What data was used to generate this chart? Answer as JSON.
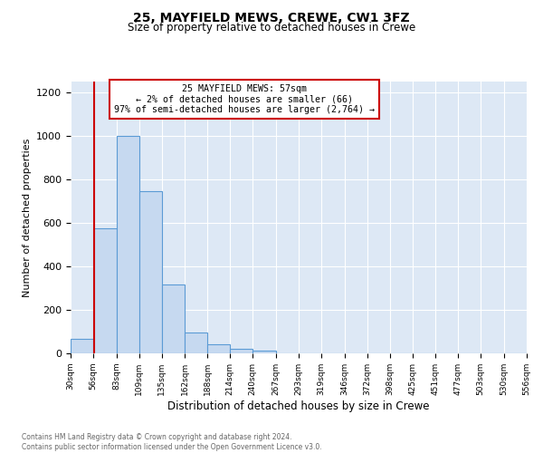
{
  "title1": "25, MAYFIELD MEWS, CREWE, CW1 3FZ",
  "title2": "Size of property relative to detached houses in Crewe",
  "xlabel": "Distribution of detached houses by size in Crewe",
  "ylabel": "Number of detached properties",
  "bin_edges": [
    30,
    56,
    83,
    109,
    135,
    162,
    188,
    214,
    240,
    267,
    293,
    319,
    346,
    372,
    398,
    425,
    451,
    477,
    503,
    530,
    556
  ],
  "bar_heights": [
    65,
    575,
    1000,
    745,
    315,
    95,
    42,
    20,
    13,
    0,
    0,
    0,
    0,
    0,
    0,
    0,
    0,
    0,
    0,
    0
  ],
  "bar_color": "#c6d9f0",
  "bar_edge_color": "#5b9bd5",
  "background_color": "#dde8f5",
  "property_size": 57,
  "property_line_color": "#cc0000",
  "annotation_box_edge_color": "#cc0000",
  "annotation_text_line1": "25 MAYFIELD MEWS: 57sqm",
  "annotation_text_line2": "← 2% of detached houses are smaller (66)",
  "annotation_text_line3": "97% of semi-detached houses are larger (2,764) →",
  "ylim": [
    0,
    1250
  ],
  "yticks": [
    0,
    200,
    400,
    600,
    800,
    1000,
    1200
  ],
  "footer_text": "Contains HM Land Registry data © Crown copyright and database right 2024.\nContains public sector information licensed under the Open Government Licence v3.0.",
  "tick_labels": [
    "30sqm",
    "56sqm",
    "83sqm",
    "109sqm",
    "135sqm",
    "162sqm",
    "188sqm",
    "214sqm",
    "240sqm",
    "267sqm",
    "293sqm",
    "319sqm",
    "346sqm",
    "372sqm",
    "398sqm",
    "425sqm",
    "451sqm",
    "477sqm",
    "503sqm",
    "530sqm",
    "556sqm"
  ]
}
